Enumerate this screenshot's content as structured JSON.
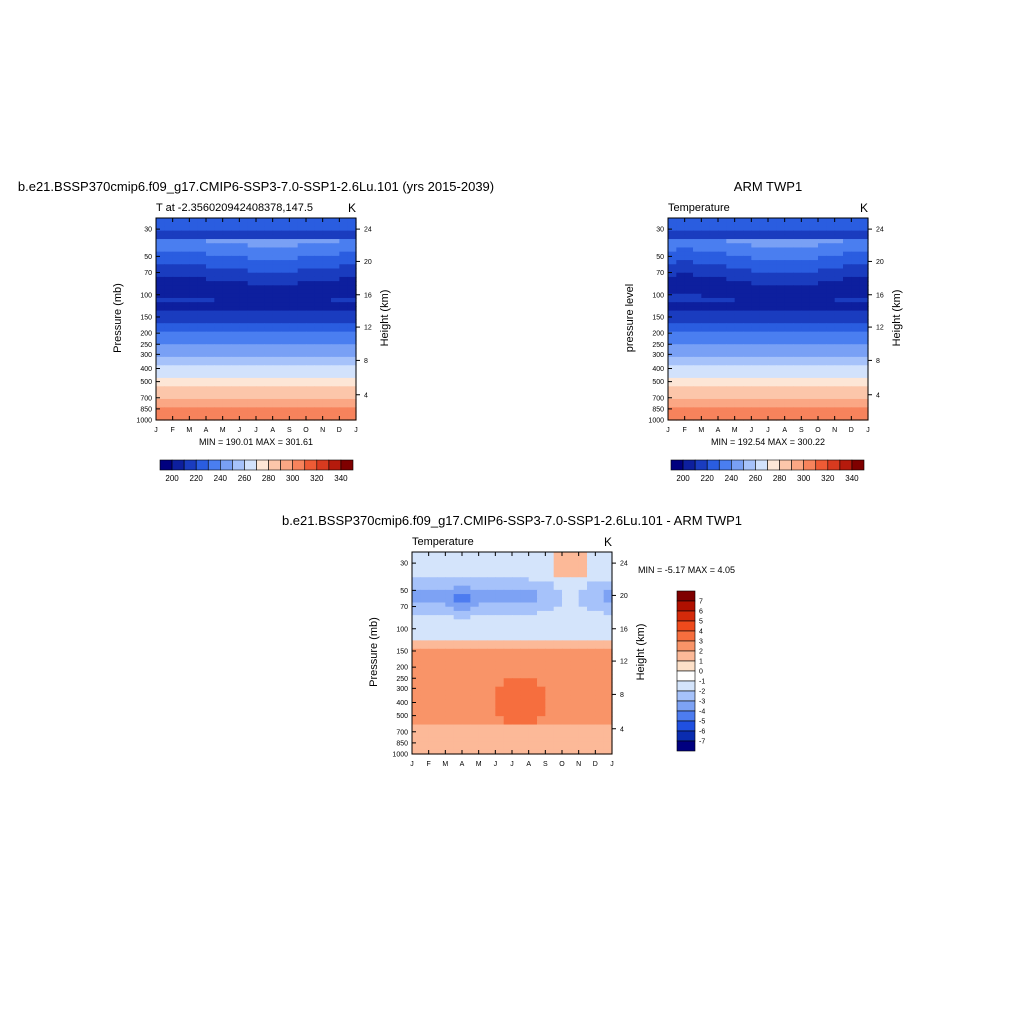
{
  "chart_data": [
    {
      "type": "heatmap",
      "title": "b.e21.BSSP370cmip6.f09_g17.CMIP6-SSP3-7.0-SSP1-2.6Lu.101 (yrs 2015-2039)",
      "left_label": "T at -2.356020942408378,147.5",
      "right_label": "K",
      "ylabel": "Pressure (mb)",
      "ylabel_right": "Height (km)",
      "x_ticks": [
        "J",
        "F",
        "M",
        "A",
        "M",
        "J",
        "J",
        "A",
        "S",
        "O",
        "N",
        "D",
        "J"
      ],
      "y_ticks": [
        "30",
        "50",
        "70",
        "100",
        "150",
        "200",
        "250",
        "300",
        "400",
        "500",
        "700",
        "850",
        "1000"
      ],
      "height_ticks": [
        "4",
        "8",
        "12",
        "16",
        "20",
        "24"
      ],
      "stats": "MIN = 190.01  MAX = 301.61",
      "min": 190.01,
      "max": 301.61,
      "colorbar": {
        "levels": [
          "200",
          "220",
          "240",
          "260",
          "280",
          "300",
          "320",
          "340"
        ],
        "colors": [
          "#00007f",
          "#0d1f9e",
          "#1a3cbf",
          "#2a5de0",
          "#4a7ef0",
          "#79a0f5",
          "#a6c2fa",
          "#d2e2fc",
          "#fde6d6",
          "#fcc6aa",
          "#fba784",
          "#f7835c",
          "#ee5b35",
          "#d93a1f",
          "#b51a0c",
          "#7f0000"
        ]
      }
    },
    {
      "type": "heatmap",
      "title": "ARM TWP1",
      "left_label": "Temperature",
      "right_label": "K",
      "ylabel": "pressure level",
      "ylabel_right": "Height (km)",
      "x_ticks": [
        "J",
        "F",
        "M",
        "A",
        "M",
        "J",
        "J",
        "A",
        "S",
        "O",
        "N",
        "D",
        "J"
      ],
      "y_ticks": [
        "30",
        "50",
        "70",
        "100",
        "150",
        "200",
        "250",
        "300",
        "400",
        "500",
        "700",
        "850",
        "1000"
      ],
      "height_ticks": [
        "4",
        "8",
        "12",
        "16",
        "20",
        "24"
      ],
      "stats": "MIN = 192.54  MAX = 300.22",
      "min": 192.54,
      "max": 300.22,
      "colorbar": {
        "levels": [
          "200",
          "220",
          "240",
          "260",
          "280",
          "300",
          "320",
          "340"
        ],
        "colors": [
          "#00007f",
          "#0d1f9e",
          "#1a3cbf",
          "#2a5de0",
          "#4a7ef0",
          "#79a0f5",
          "#a6c2fa",
          "#d2e2fc",
          "#fde6d6",
          "#fcc6aa",
          "#fba784",
          "#f7835c",
          "#ee5b35",
          "#d93a1f",
          "#b51a0c",
          "#7f0000"
        ]
      }
    },
    {
      "type": "heatmap",
      "title": "b.e21.BSSP370cmip6.f09_g17.CMIP6-SSP3-7.0-SSP1-2.6Lu.101 - ARM TWP1",
      "left_label": "Temperature",
      "right_label": "K",
      "ylabel": "Pressure (mb)",
      "ylabel_right": "Height (km)",
      "x_ticks": [
        "J",
        "F",
        "M",
        "A",
        "M",
        "J",
        "J",
        "A",
        "S",
        "O",
        "N",
        "D",
        "J"
      ],
      "y_ticks": [
        "30",
        "50",
        "70",
        "100",
        "150",
        "200",
        "250",
        "300",
        "400",
        "500",
        "700",
        "850",
        "1000"
      ],
      "height_ticks": [
        "4",
        "8",
        "12",
        "16",
        "20",
        "24"
      ],
      "stats": "MIN =  -5.17 MAX =   4.05",
      "min": -5.17,
      "max": 4.05,
      "colorbar": {
        "levels": [
          "7",
          "6",
          "5",
          "4",
          "3",
          "2",
          "1",
          "0",
          "-1",
          "-2",
          "-3",
          "-4",
          "-5",
          "-6",
          "-7"
        ],
        "colors": [
          "#7f0000",
          "#b01000",
          "#d42a0a",
          "#ee4a1c",
          "#f66e3e",
          "#f99468",
          "#fcb998",
          "#fde0c8",
          "#ffffff",
          "#d4e4fb",
          "#a6c2fa",
          "#7da2f4",
          "#4d7cf0",
          "#2050e0",
          "#0a2cb0",
          "#00007f"
        ]
      }
    }
  ]
}
